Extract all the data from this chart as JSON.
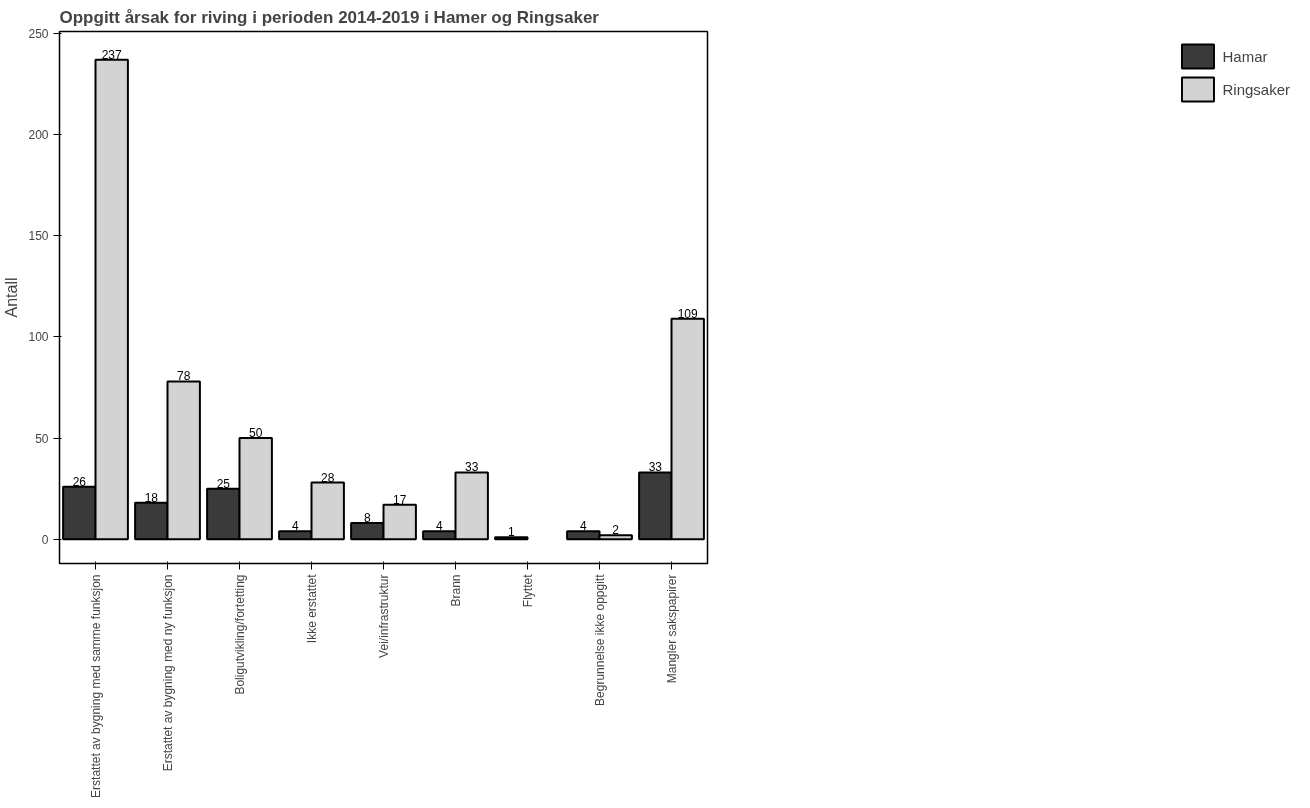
{
  "chart_data": {
    "type": "bar",
    "title": "Oppgitt årsak for riving i perioden 2014-2019 i Hamer og Ringsaker",
    "ylabel": "Antall",
    "categories": [
      "Erstattet av bygning med samme funksjon",
      "Erstattet av bygning med ny funksjon",
      "Boligutvikling/fortetting",
      "Ikke erstattet",
      "Vei/infrastruktur",
      "Brann",
      "Flyttet",
      "Begrunnelse ikke oppgitt",
      "Mangler sakspapirer"
    ],
    "series": [
      {
        "name": "Hamar",
        "color": "#3a3a3a",
        "values": [
          26,
          18,
          25,
          4,
          8,
          4,
          1,
          4,
          33
        ]
      },
      {
        "name": "Ringsaker",
        "color": "#d3d3d3",
        "values": [
          237,
          78,
          50,
          28,
          17,
          33,
          null,
          2,
          109
        ]
      }
    ],
    "ylim": [
      -12,
      251
    ],
    "yticks": [
      0,
      50,
      100,
      150,
      200,
      250
    ],
    "data_labels": true,
    "legend": "right",
    "grid": false
  }
}
